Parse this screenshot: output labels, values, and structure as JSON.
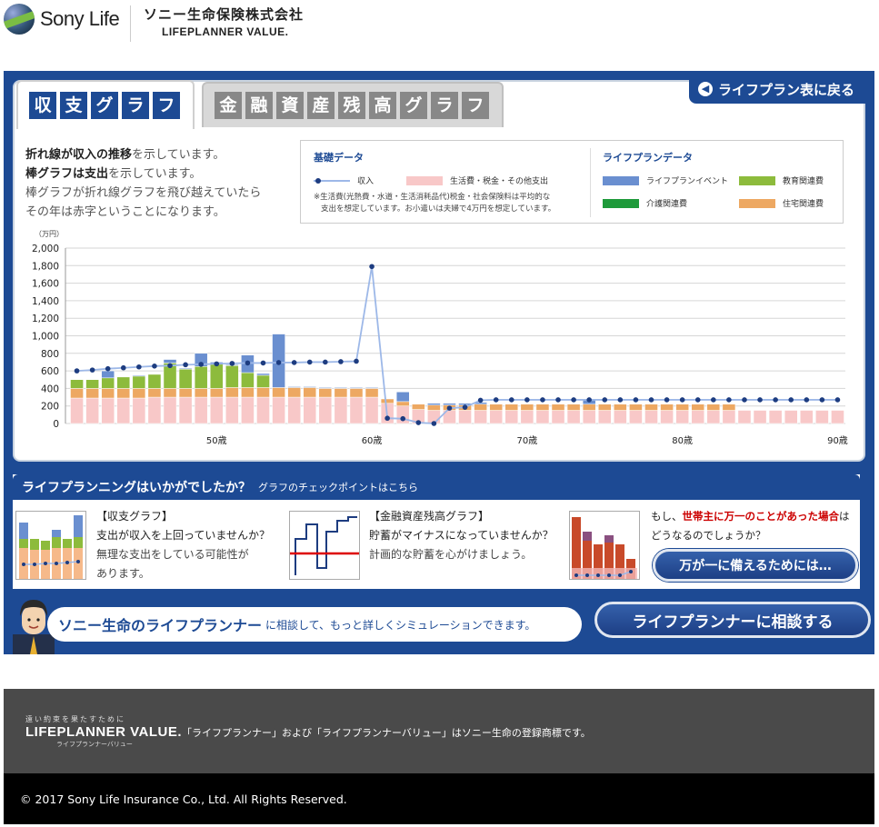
{
  "header": {
    "logo_text": "Sony Life",
    "company_name": "ソニー生命保険株式会社",
    "brand": "LIFEPLANNER VALUE."
  },
  "tabs": [
    {
      "label": "収支グラフ",
      "chars": [
        "収",
        "支",
        "グ",
        "ラ",
        "フ"
      ],
      "active": true
    },
    {
      "label": "金融資産残高グラフ",
      "chars": [
        "金",
        "融",
        "資",
        "産",
        "残",
        "高",
        "グ",
        "ラ",
        "フ"
      ],
      "active": false
    }
  ],
  "back_button": {
    "label": "ライフプラン表に戻る",
    "icon": "circle-arrow-left-icon"
  },
  "description": {
    "line1_bold": "折れ線が収入の推移",
    "line1_rest": "を示しています。",
    "line2_bold": "棒グラフは支出",
    "line2_rest": "を示しています。",
    "line3": "棒グラフが折れ線グラフを飛び越えていたら",
    "line4": "その年は赤字ということになります。"
  },
  "legend": {
    "basic_title": "基礎データ",
    "income_label": "収入",
    "living_label": "生活費・税金・その他支出",
    "note_line1": "※生活費(光熱費・水道・生活消耗品代)税金・社会保険料は平均的な",
    "note_line2": "支出を想定しています。お小遣いは夫婦で4万円を想定しています。",
    "plan_title": "ライフプランデータ",
    "items": [
      {
        "label": "ライフプランイベント",
        "color": "#6a8fd0"
      },
      {
        "label": "教育関連費",
        "color": "#8dbb3c"
      },
      {
        "label": "介護関連費",
        "color": "#1e9a3a"
      },
      {
        "label": "住宅関連費",
        "color": "#eda862"
      }
    ],
    "living_color": "#f8c8c8",
    "income_color": "#1d3c80"
  },
  "chart_data": {
    "type": "bar",
    "unit_label": "（万円）",
    "ylim": [
      0,
      2000
    ],
    "yticks": [
      "0",
      "200",
      "400",
      "600",
      "800",
      "1,000",
      "1,200",
      "1,400",
      "1,600",
      "1,800",
      "2,000"
    ],
    "x_tick_labels": [
      {
        "age": 50,
        "label": "50歳"
      },
      {
        "age": 60,
        "label": "60歳"
      },
      {
        "age": 70,
        "label": "70歳"
      },
      {
        "age": 80,
        "label": "80歳"
      },
      {
        "age": 90,
        "label": "90歳"
      }
    ],
    "ages": [
      41,
      42,
      43,
      44,
      45,
      46,
      47,
      48,
      49,
      50,
      51,
      52,
      53,
      54,
      55,
      56,
      57,
      58,
      59,
      60,
      61,
      62,
      63,
      64,
      65,
      66,
      67,
      68,
      69,
      70,
      71,
      72,
      73,
      74,
      75,
      76,
      77,
      78,
      79,
      80,
      81,
      82,
      83,
      84,
      85,
      86,
      87,
      88,
      89,
      90
    ],
    "series": [
      {
        "name": "生活費・税金・その他支出",
        "values": [
          290,
          290,
          290,
          290,
          290,
          300,
          300,
          300,
          300,
          300,
          300,
          300,
          300,
          300,
          300,
          300,
          300,
          300,
          300,
          300,
          230,
          200,
          160,
          150,
          150,
          150,
          150,
          150,
          150,
          150,
          150,
          150,
          150,
          150,
          150,
          150,
          150,
          150,
          150,
          150,
          150,
          150,
          150,
          150,
          150,
          150,
          150,
          150,
          150,
          150
        ]
      },
      {
        "name": "住宅関連費",
        "values": [
          110,
          110,
          110,
          110,
          110,
          100,
          100,
          100,
          100,
          100,
          110,
          110,
          110,
          110,
          110,
          110,
          100,
          100,
          100,
          100,
          50,
          50,
          60,
          60,
          60,
          60,
          70,
          70,
          70,
          70,
          70,
          70,
          70,
          70,
          70,
          70,
          70,
          70,
          70,
          70,
          70,
          70,
          70,
          0,
          0,
          0,
          0,
          0,
          0,
          0
        ]
      },
      {
        "name": "教育関連費",
        "values": [
          100,
          100,
          120,
          130,
          140,
          160,
          290,
          220,
          250,
          280,
          250,
          170,
          140,
          0,
          0,
          0,
          0,
          0,
          0,
          0,
          0,
          0,
          0,
          0,
          0,
          0,
          0,
          0,
          0,
          0,
          0,
          0,
          0,
          0,
          0,
          0,
          0,
          0,
          0,
          0,
          0,
          0,
          0,
          0,
          0,
          0,
          0,
          0,
          0,
          0
        ]
      },
      {
        "name": "ライフプランイベント",
        "values": [
          0,
          0,
          80,
          0,
          10,
          0,
          40,
          10,
          150,
          20,
          10,
          200,
          20,
          610,
          10,
          10,
          10,
          10,
          10,
          10,
          0,
          110,
          0,
          20,
          20,
          20,
          20,
          0,
          0,
          0,
          0,
          0,
          0,
          50,
          0,
          0,
          0,
          0,
          0,
          0,
          0,
          0,
          0,
          0,
          0,
          0,
          0,
          0,
          0,
          0
        ]
      },
      {
        "name": "収入",
        "values": [
          600,
          610,
          625,
          635,
          645,
          655,
          660,
          670,
          675,
          680,
          685,
          690,
          690,
          695,
          695,
          700,
          700,
          705,
          710,
          1790,
          60,
          55,
          10,
          0,
          175,
          185,
          265,
          270,
          270,
          270,
          270,
          270,
          270,
          270,
          270,
          270,
          270,
          270,
          270,
          270,
          270,
          270,
          270,
          270,
          270,
          270,
          270,
          270,
          270,
          270
        ]
      }
    ]
  },
  "checkpoint": {
    "title": "ライフプランニングはいかがでしたか？",
    "subtitle": "グラフのチェックポイントはこちら",
    "item1_title": "【収支グラフ】",
    "item1_question": "支出が収入を上回っていませんか？",
    "item1_tip1": "無理な支出をしている可能性が",
    "item1_tip2": "あります。",
    "item2_title": "【金融資産残高グラフ】",
    "item2_question": "貯蓄がマイナスになっていませんか？",
    "item2_tip": "計画的な貯蓄を心がけましょう。",
    "item3_pre": "もし、",
    "item3_red": "世帯主に万一のことがあった場合",
    "item3_post": "は",
    "item3_line2": "どうなるのでしょうか？",
    "item3_button": "万が一に備えるためには…"
  },
  "consult": {
    "big": "ソニー生命のライフプランナー",
    "small": "に相談して、もっと詳しくシミュレーションできます。",
    "button": "ライフプランナーに相談する"
  },
  "footer": {
    "logo_tagline": "遠い約束を果たすために",
    "logo_brand": "LIFEPLANNER VALUE.",
    "logo_kana": "ライフプランナーバリュー",
    "trademark_note": "「ライフプランナー」および「ライフプランナーバリュー」はソニー生命の登録商標です。",
    "copyright": "© 2017 Sony Life Insurance Co., Ltd. All Rights Reserved."
  }
}
